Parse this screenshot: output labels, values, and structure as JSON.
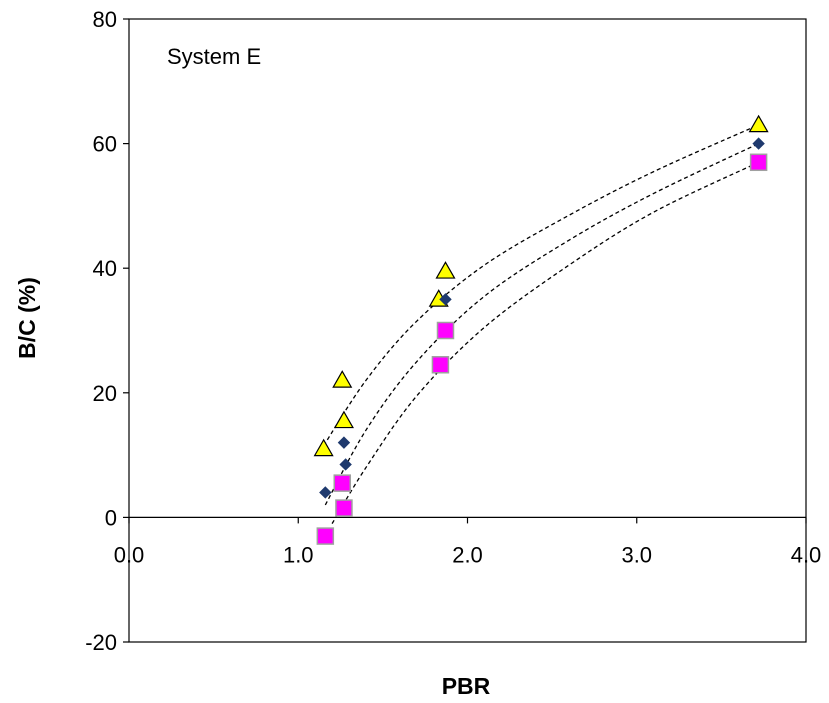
{
  "chart_data": {
    "type": "scatter",
    "annotation": "System E",
    "xlabel": "PBR",
    "ylabel": "B/C (%)",
    "xlim": [
      0,
      4
    ],
    "ylim": [
      -20,
      80
    ],
    "x_ticks": [
      "0.0",
      "1.0",
      "2.0",
      "3.0",
      "4.0"
    ],
    "y_ticks": [
      "-20",
      "0",
      "20",
      "40",
      "60",
      "80"
    ],
    "grid": false,
    "legend": "none",
    "series": [
      {
        "marker": "triangle",
        "color": "#ffff00",
        "points": [
          {
            "x": 1.15,
            "y": 11
          },
          {
            "x": 1.26,
            "y": 22
          },
          {
            "x": 1.27,
            "y": 15.5
          },
          {
            "x": 1.83,
            "y": 35
          },
          {
            "x": 1.87,
            "y": 39.5
          },
          {
            "x": 3.72,
            "y": 63
          }
        ],
        "trend": [
          {
            "x": 1.15,
            "y": 11.5
          },
          {
            "x": 1.4,
            "y": 22
          },
          {
            "x": 1.7,
            "y": 31.5
          },
          {
            "x": 2.1,
            "y": 40.5
          },
          {
            "x": 2.6,
            "y": 48.5
          },
          {
            "x": 3.1,
            "y": 55.5
          },
          {
            "x": 3.72,
            "y": 63
          }
        ]
      },
      {
        "marker": "diamond",
        "color": "#1f3a6e",
        "points": [
          {
            "x": 1.16,
            "y": 4
          },
          {
            "x": 1.27,
            "y": 12
          },
          {
            "x": 1.28,
            "y": 8.5
          },
          {
            "x": 1.87,
            "y": 35
          },
          {
            "x": 3.72,
            "y": 60
          }
        ],
        "trend": [
          {
            "x": 1.16,
            "y": 2
          },
          {
            "x": 1.4,
            "y": 14
          },
          {
            "x": 1.7,
            "y": 25
          },
          {
            "x": 2.1,
            "y": 35.5
          },
          {
            "x": 2.6,
            "y": 44.5
          },
          {
            "x": 3.1,
            "y": 52
          },
          {
            "x": 3.72,
            "y": 60
          }
        ]
      },
      {
        "marker": "square",
        "color": "#ff00ff",
        "points": [
          {
            "x": 1.16,
            "y": -3
          },
          {
            "x": 1.26,
            "y": 5.5
          },
          {
            "x": 1.27,
            "y": 1.5
          },
          {
            "x": 1.84,
            "y": 24.5
          },
          {
            "x": 1.87,
            "y": 30
          },
          {
            "x": 3.72,
            "y": 57
          }
        ],
        "trend": [
          {
            "x": 1.2,
            "y": -1
          },
          {
            "x": 1.4,
            "y": 8
          },
          {
            "x": 1.7,
            "y": 19.5
          },
          {
            "x": 2.1,
            "y": 30.5
          },
          {
            "x": 2.6,
            "y": 40.5
          },
          {
            "x": 3.1,
            "y": 49
          },
          {
            "x": 3.72,
            "y": 57
          }
        ]
      }
    ]
  }
}
